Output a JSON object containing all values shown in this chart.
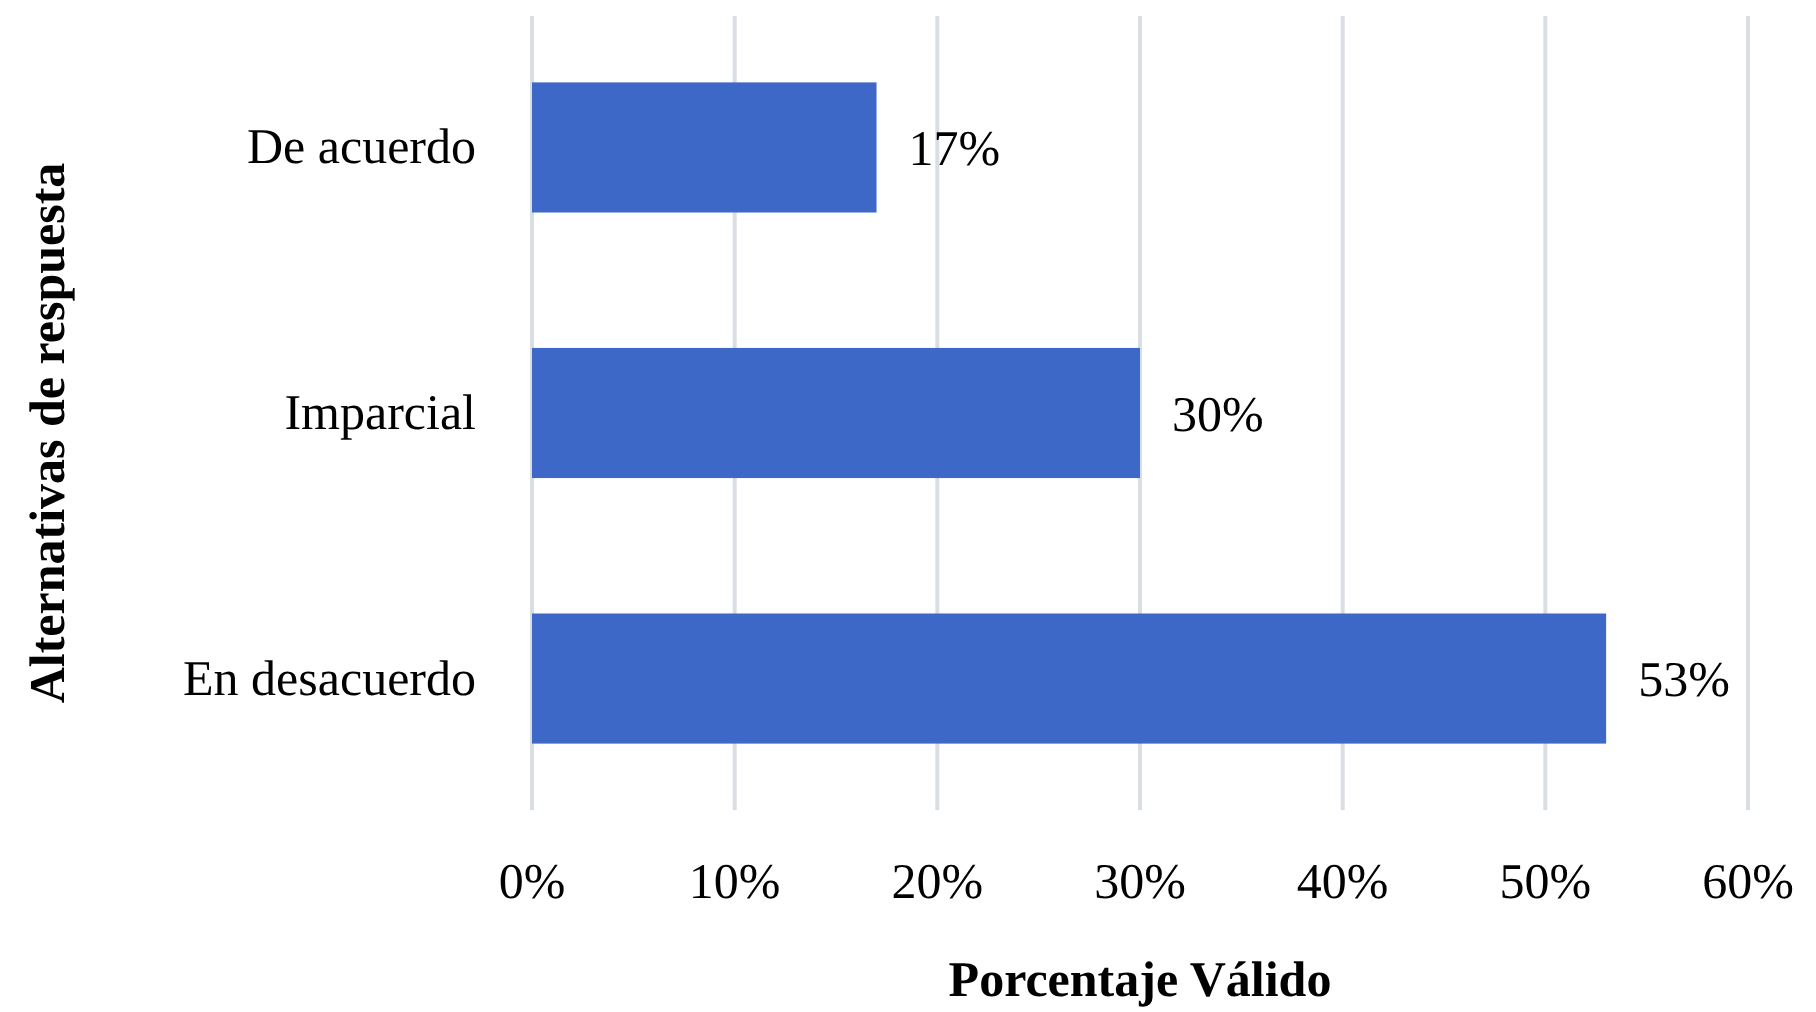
{
  "chart_data": {
    "type": "bar",
    "orientation": "horizontal",
    "categories": [
      "De acuerdo",
      "Imparcial",
      "En desacuerdo"
    ],
    "values": [
      17,
      30,
      53
    ],
    "value_labels": [
      "17%",
      "30%",
      "53%"
    ],
    "color": "#3d68c8",
    "xlabel": "Porcentaje Válido",
    "ylabel": "Alternativas de respuesta",
    "xlim": [
      0,
      60
    ],
    "xticks": [
      {
        "value": 0,
        "label": "0%"
      },
      {
        "value": 10,
        "label": "10%"
      },
      {
        "value": 20,
        "label": "20%"
      },
      {
        "value": 30,
        "label": "30%"
      },
      {
        "value": 40,
        "label": "40%"
      },
      {
        "value": 50,
        "label": "50%"
      },
      {
        "value": 60,
        "label": "60%"
      }
    ],
    "grid": "x"
  }
}
